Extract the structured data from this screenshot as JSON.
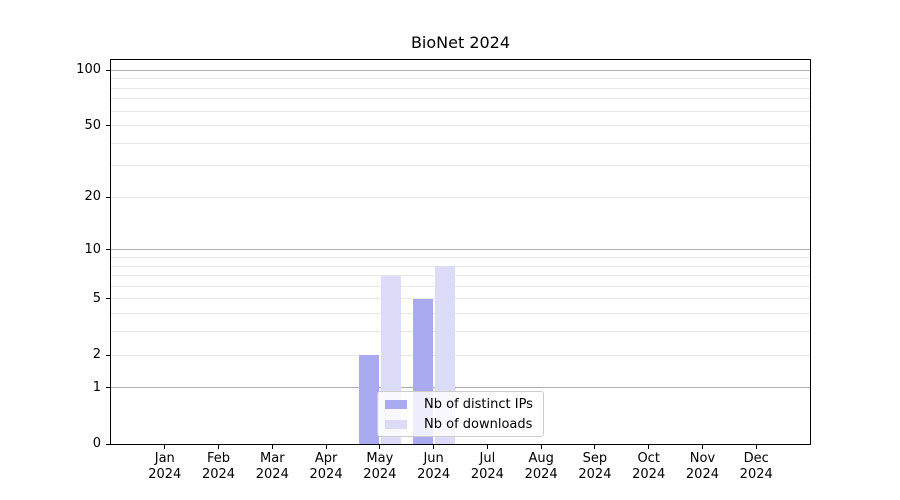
{
  "chart_data": {
    "type": "bar",
    "title": "BioNet 2024",
    "categories": [
      "Jan",
      "Feb",
      "Mar",
      "Apr",
      "May",
      "Jun",
      "Jul",
      "Aug",
      "Sep",
      "Oct",
      "Nov",
      "Dec"
    ],
    "category_year": "2024",
    "series": [
      {
        "name": "Nb of distinct IPs",
        "color": "#aaaaf0",
        "values": [
          0,
          0,
          0,
          0,
          2,
          5,
          0,
          0,
          0,
          0,
          0,
          0
        ]
      },
      {
        "name": "Nb of downloads",
        "color": "#dcdcf8",
        "values": [
          0,
          0,
          0,
          0,
          7,
          8,
          0,
          0,
          0,
          0,
          0,
          0
        ]
      }
    ],
    "yscale": "log1p",
    "ylim": [
      0,
      115
    ],
    "xlim": [
      -1,
      12
    ],
    "yticks": [
      0,
      1,
      2,
      5,
      10,
      20,
      50,
      100
    ],
    "grid_major_values": [
      1,
      10,
      100
    ],
    "grid_minor_values": [
      2,
      3,
      4,
      5,
      6,
      7,
      8,
      9,
      20,
      30,
      40,
      50,
      60,
      70,
      80,
      90
    ],
    "grid": "horizontal",
    "legend_position": "lower-center",
    "colors": {
      "grid_major": "#b0b0b0",
      "grid_minor": "#e8e8e8",
      "spine": "#000000",
      "legend_border": "#cccccc"
    }
  }
}
